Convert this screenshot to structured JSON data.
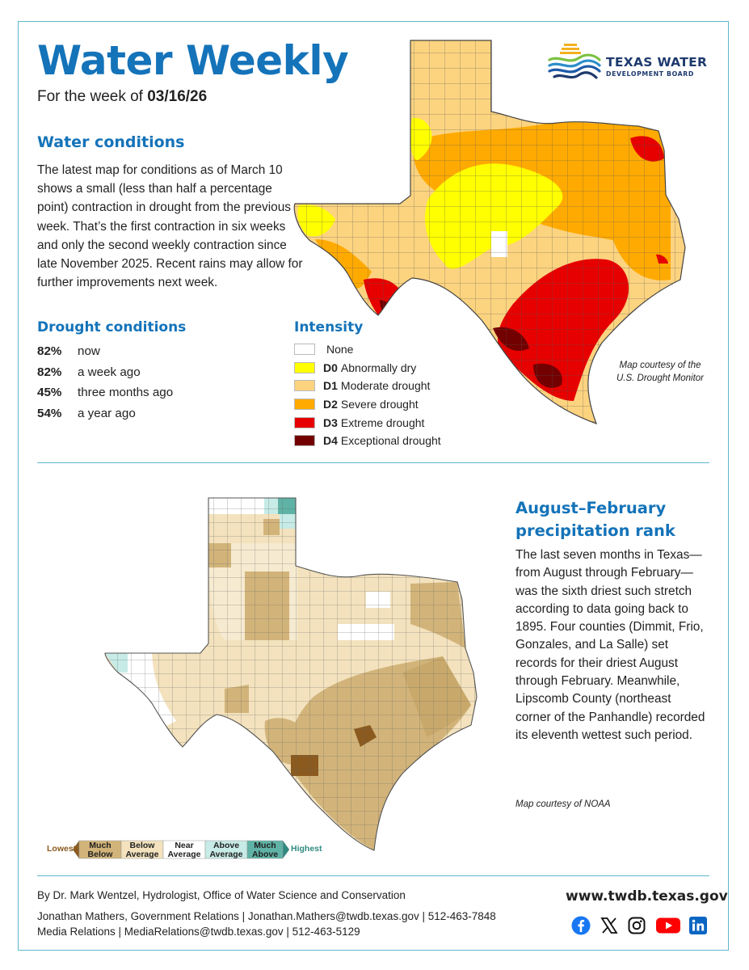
{
  "header": {
    "title": "Water Weekly",
    "week_prefix": "For the week of ",
    "week_date": "03/16/26"
  },
  "logo": {
    "line1": "TEXAS WATER",
    "line2": "DEVELOPMENT BOARD"
  },
  "water_conditions": {
    "heading": "Water conditions",
    "body": "The latest map for conditions as of March 10 shows a small (less than half a percentage point) contraction in drought from the previous week. That’s the first contraction in six weeks and only the second weekly contraction since late November 2025. Recent rains may allow for further improvements next week."
  },
  "drought_conditions": {
    "heading": "Drought conditions",
    "items": [
      {
        "pct": "82%",
        "label": "now"
      },
      {
        "pct": "82%",
        "label": "a week ago"
      },
      {
        "pct": "45%",
        "label": "three months ago"
      },
      {
        "pct": "54%",
        "label": "a year ago"
      }
    ]
  },
  "intensity": {
    "heading": "Intensity",
    "items": [
      {
        "code": "",
        "label": "None",
        "color": "#ffffff"
      },
      {
        "code": "D0",
        "label": "Abnormally dry",
        "color": "#ffff00"
      },
      {
        "code": "D1",
        "label": "Moderate drought",
        "color": "#fcd37f"
      },
      {
        "code": "D2",
        "label": "Severe drought",
        "color": "#ffaa00"
      },
      {
        "code": "D3",
        "label": "Extreme drought",
        "color": "#e60000"
      },
      {
        "code": "D4",
        "label": "Exceptional drought",
        "color": "#730000"
      }
    ]
  },
  "drought_map_credit": {
    "line1": "Map courtesy of the",
    "line2": "U.S. Drought Monitor"
  },
  "precipitation": {
    "heading_line1": "August–February",
    "heading_line2": "precipitation rank",
    "body": "The last seven months in Texas—from August through February—was the sixth driest such stretch according to data going back to 1895. Four counties (Dimmit, Frio, Gonzales, and La Salle) set records for their driest August through February. Meanwhile, Lipscomb County (northeast corner of the Panhandle) recorded its eleventh wettest such period.",
    "credit": "Map courtesy of NOAA"
  },
  "rank_scale": {
    "lowest": "Lowest",
    "highest": "Highest",
    "categories": [
      {
        "line1": "Much",
        "line2": "Below",
        "color": "#d2b47a"
      },
      {
        "line1": "Below",
        "line2": "Average",
        "color": "#f3e2bd"
      },
      {
        "line1": "Near",
        "line2": "Average",
        "color": "#ffffff"
      },
      {
        "line1": "Above",
        "line2": "Average",
        "color": "#c7ebe6"
      },
      {
        "line1": "Much",
        "line2": "Above",
        "color": "#5fb3a6"
      }
    ],
    "lowest_color": "#8b5a1f",
    "highest_color": "#2f8a80"
  },
  "footer": {
    "author": "By Dr. Mark Wentzel, Hydrologist, Office of Water Science and Conservation",
    "contact1": "Jonathan Mathers, Government Relations | Jonathan.Mathers@twdb.texas.gov | 512-463-7848",
    "contact2": "Media Relations | MediaRelations@twdb.texas.gov | 512-463-5129",
    "website": "www.twdb.texas.gov",
    "social": [
      "facebook-icon",
      "x-icon",
      "instagram-icon",
      "youtube-icon",
      "linkedin-icon"
    ]
  },
  "colors": {
    "accent": "#1473b9",
    "rule": "#5fb7cf"
  }
}
